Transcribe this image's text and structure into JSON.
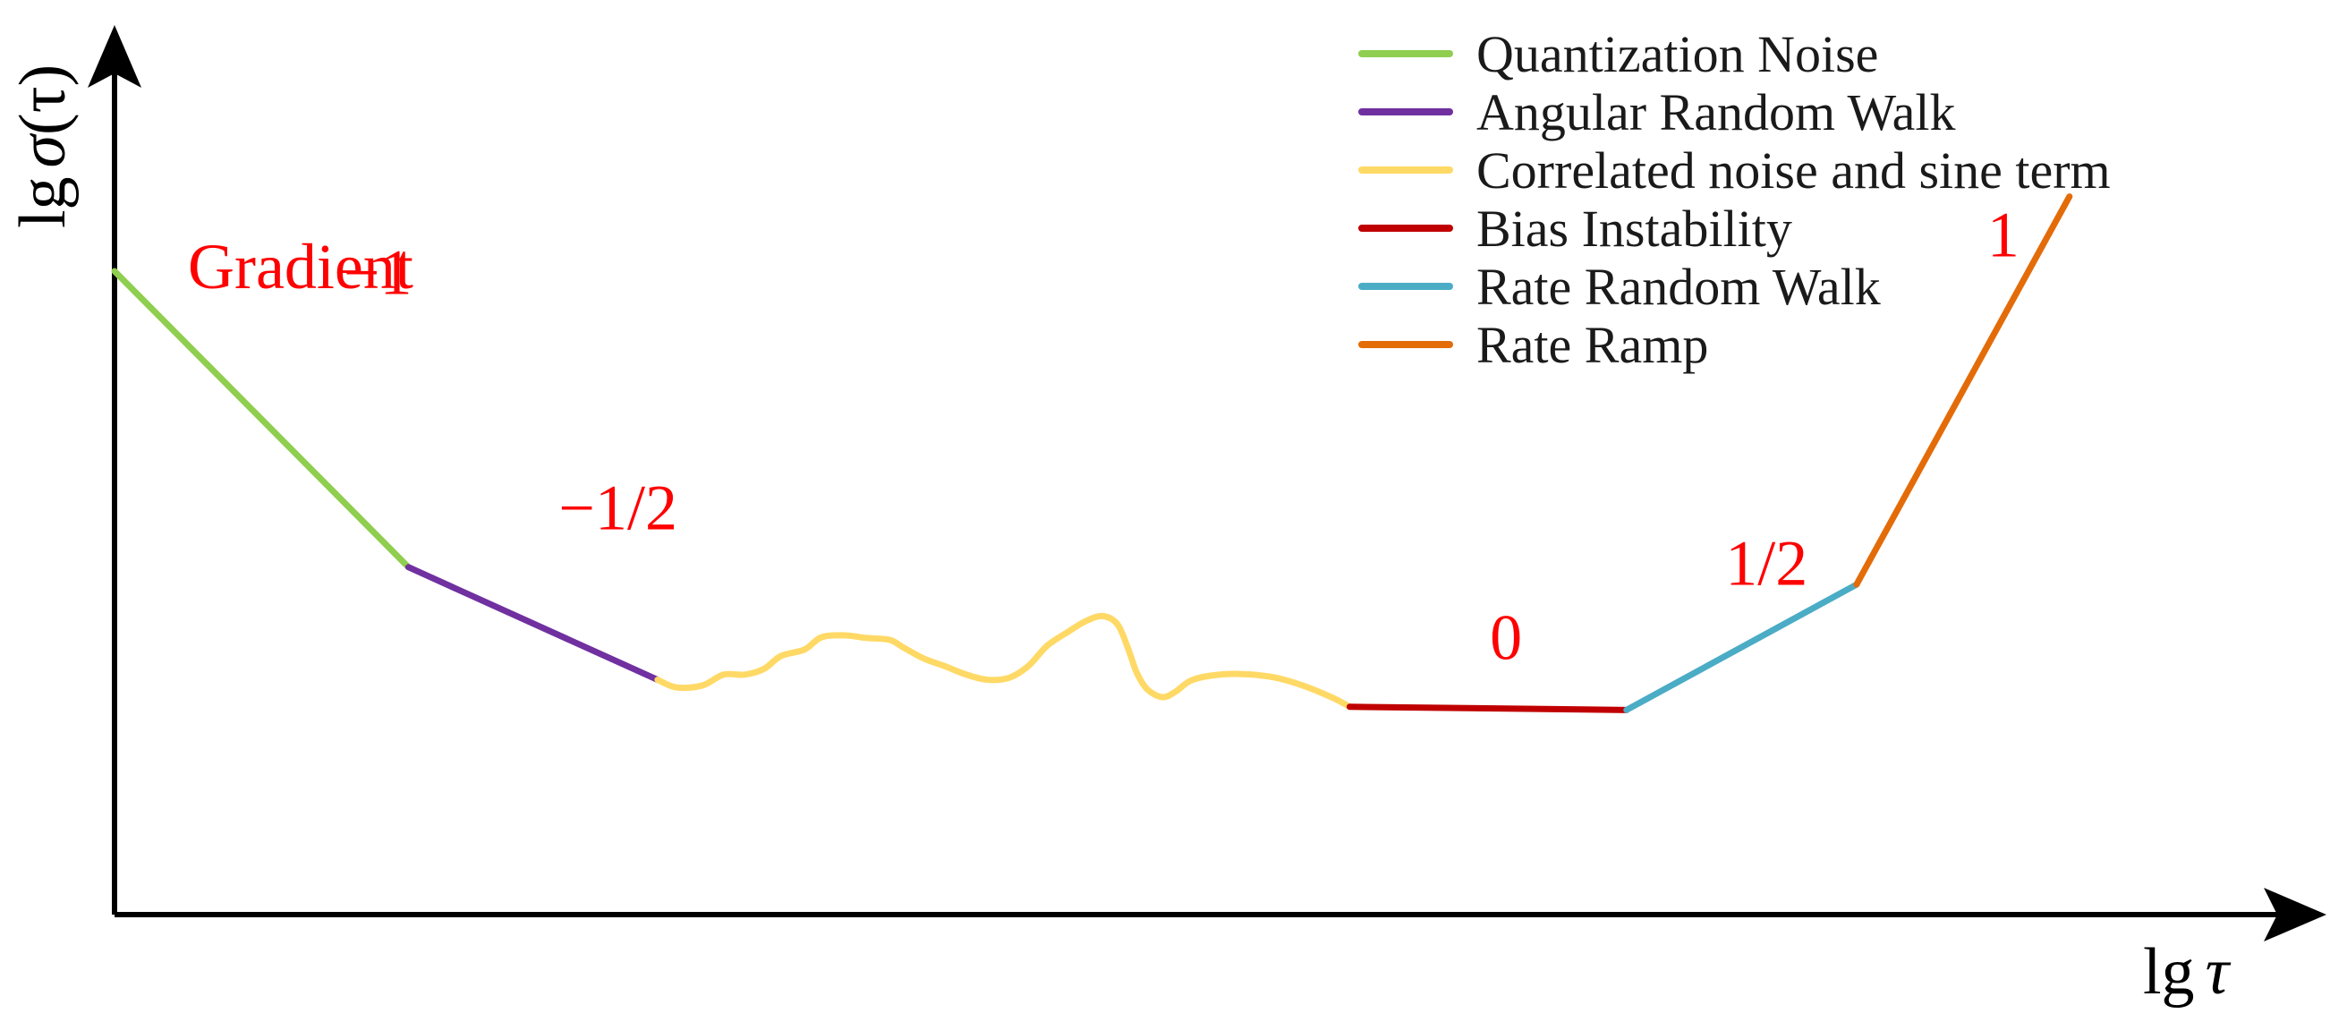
{
  "chart_data": {
    "type": "line",
    "title": "",
    "grid": false,
    "legend_position": "top-right",
    "xlabel": {
      "prefix": "lg",
      "symbol": "τ"
    },
    "ylabel": {
      "prefix": "lg",
      "symbol": "σ",
      "arg": "(τ)"
    },
    "xlim": [
      0,
      100
    ],
    "ylim": [
      0,
      100
    ],
    "gradient_heading": "Gradient",
    "series": [
      {
        "name": "Quantization Noise",
        "color": "#8fce4f",
        "slope_label": "−1",
        "points": [
          [
            0,
            100
          ],
          [
            13.8,
            54
          ]
        ]
      },
      {
        "name": "Angular Random Walk",
        "color": "#7030a0",
        "slope_label": "−1/2",
        "points": [
          [
            13.8,
            54
          ],
          [
            25.5,
            36.5
          ]
        ]
      },
      {
        "name": "Correlated noise and sine term",
        "color": "#ffd966",
        "slope_label": "",
        "points": [
          [
            25.5,
            36.5
          ],
          [
            26.4,
            35.3
          ],
          [
            27.6,
            35.6
          ],
          [
            28.6,
            37.3
          ],
          [
            29.6,
            37.3
          ],
          [
            30.5,
            38.2
          ],
          [
            31.3,
            40.2
          ],
          [
            32.4,
            41.2
          ],
          [
            33.2,
            43.1
          ],
          [
            34.3,
            43.4
          ],
          [
            35.3,
            43.0
          ],
          [
            36.4,
            42.7
          ],
          [
            37.0,
            41.6
          ],
          [
            38.0,
            39.8
          ],
          [
            39.0,
            38.6
          ],
          [
            40.0,
            37.3
          ],
          [
            41.0,
            36.5
          ],
          [
            42.0,
            36.8
          ],
          [
            42.9,
            38.6
          ],
          [
            43.8,
            41.8
          ],
          [
            44.8,
            44.0
          ],
          [
            45.6,
            45.6
          ],
          [
            46.4,
            46.4
          ],
          [
            47.1,
            45.1
          ],
          [
            47.6,
            41.3
          ],
          [
            48.0,
            37.6
          ],
          [
            48.5,
            35.0
          ],
          [
            49.2,
            33.8
          ],
          [
            49.8,
            34.6
          ],
          [
            50.5,
            36.3
          ],
          [
            51.4,
            37.1
          ],
          [
            52.8,
            37.4
          ],
          [
            54.4,
            36.9
          ],
          [
            55.8,
            35.6
          ],
          [
            57.2,
            33.7
          ],
          [
            58.0,
            32.3
          ]
        ]
      },
      {
        "name": "Bias Instability",
        "color": "#c00000",
        "slope_label": "0",
        "points": [
          [
            58.0,
            32.3
          ],
          [
            71.0,
            31.8
          ]
        ]
      },
      {
        "name": "Rate Random Walk",
        "color": "#4bacc6",
        "slope_label": "1/2",
        "points": [
          [
            71.0,
            31.8
          ],
          [
            81.8,
            51.3
          ]
        ]
      },
      {
        "name": "Rate Ramp",
        "color": "#e36c09",
        "slope_label": "1",
        "points": [
          [
            81.8,
            51.3
          ],
          [
            91.8,
            111.6
          ]
        ]
      }
    ]
  }
}
